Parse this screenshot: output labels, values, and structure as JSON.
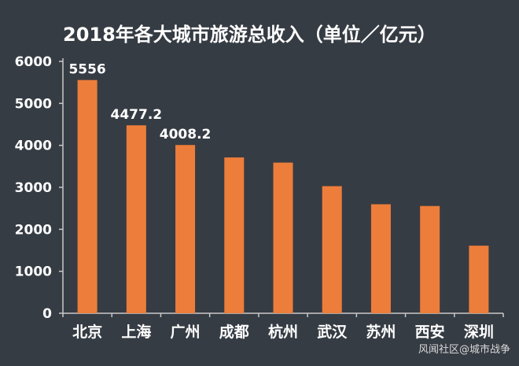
{
  "chart_data": {
    "type": "bar",
    "title": "2018年各大城市旅游总收入（单位／亿元）",
    "categories": [
      "北京",
      "上海",
      "广州",
      "成都",
      "杭州",
      "武汉",
      "苏州",
      "西安",
      "深圳"
    ],
    "values": [
      5556,
      4477.2,
      4008.2,
      3712,
      3589,
      3028,
      2597,
      2555,
      1610
    ],
    "data_labels": [
      "5556",
      "4477.2",
      "4008.2",
      "",
      "",
      "",
      "",
      "",
      ""
    ],
    "ylim": [
      0,
      6000
    ],
    "yticks": [
      "0",
      "1000",
      "2000",
      "3000",
      "4000",
      "5000",
      "6000"
    ],
    "xlabel": "",
    "ylabel": "",
    "grid": false,
    "colors": {
      "bar": "#ed7d3a",
      "background": "#363c44",
      "axis": "#c8c8c8",
      "text": "#ffffff"
    }
  },
  "watermark": "风闻社区@城市战争"
}
